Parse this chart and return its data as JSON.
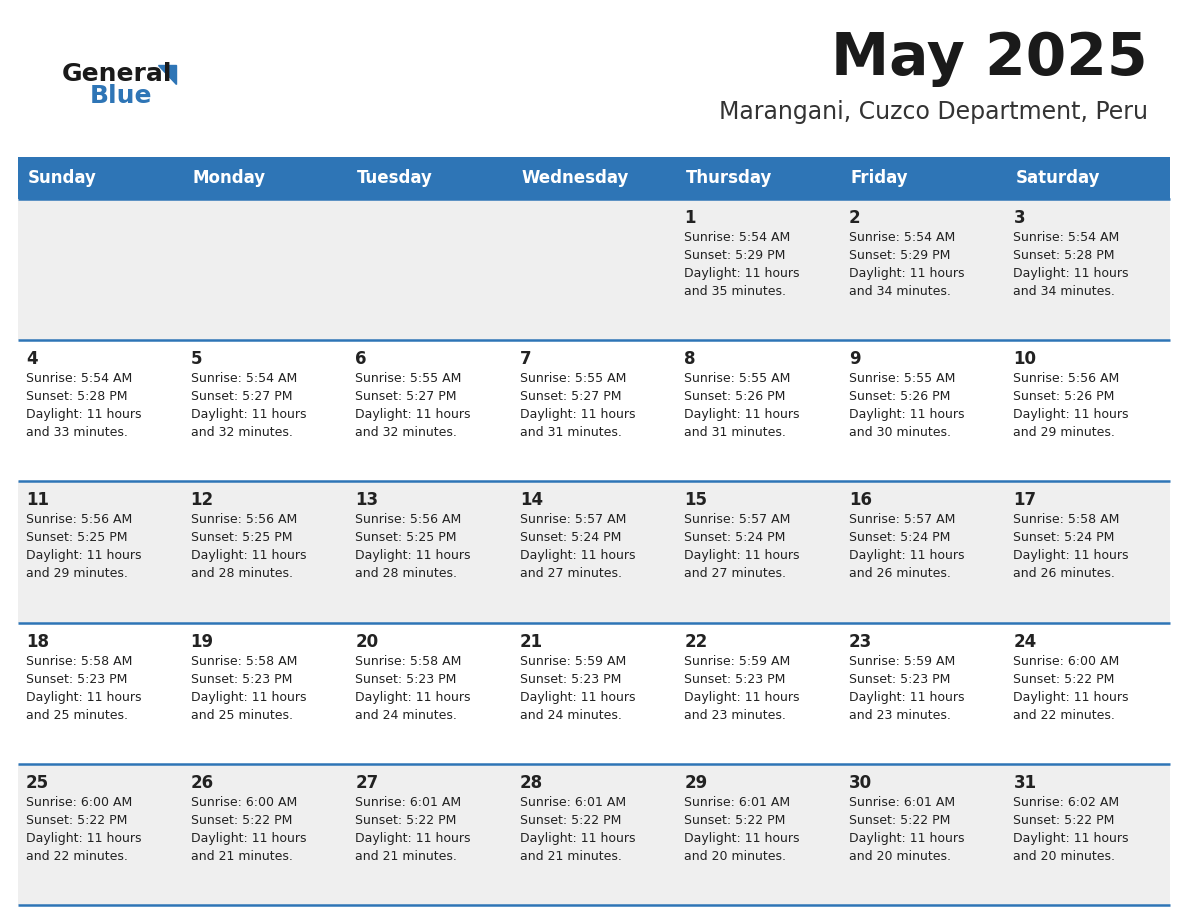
{
  "title": "May 2025",
  "subtitle": "Marangani, Cuzco Department, Peru",
  "days_of_week": [
    "Sunday",
    "Monday",
    "Tuesday",
    "Wednesday",
    "Thursday",
    "Friday",
    "Saturday"
  ],
  "header_bg": "#2E75B6",
  "header_text": "#FFFFFF",
  "row_bg_odd": "#EFEFEF",
  "row_bg_even": "#FFFFFF",
  "cell_text": "#222222",
  "separator_color": "#2E75B6",
  "title_color": "#1a1a1a",
  "subtitle_color": "#333333",
  "logo_black": "#1a1a1a",
  "logo_blue": "#2E75B6",
  "calendar": [
    [
      null,
      null,
      null,
      null,
      {
        "day": 1,
        "sunrise": "5:54 AM",
        "sunset": "5:29 PM",
        "daylight": "11 hours and 35 minutes"
      },
      {
        "day": 2,
        "sunrise": "5:54 AM",
        "sunset": "5:29 PM",
        "daylight": "11 hours and 34 minutes"
      },
      {
        "day": 3,
        "sunrise": "5:54 AM",
        "sunset": "5:28 PM",
        "daylight": "11 hours and 34 minutes"
      }
    ],
    [
      {
        "day": 4,
        "sunrise": "5:54 AM",
        "sunset": "5:28 PM",
        "daylight": "11 hours and 33 minutes"
      },
      {
        "day": 5,
        "sunrise": "5:54 AM",
        "sunset": "5:27 PM",
        "daylight": "11 hours and 32 minutes"
      },
      {
        "day": 6,
        "sunrise": "5:55 AM",
        "sunset": "5:27 PM",
        "daylight": "11 hours and 32 minutes"
      },
      {
        "day": 7,
        "sunrise": "5:55 AM",
        "sunset": "5:27 PM",
        "daylight": "11 hours and 31 minutes"
      },
      {
        "day": 8,
        "sunrise": "5:55 AM",
        "sunset": "5:26 PM",
        "daylight": "11 hours and 31 minutes"
      },
      {
        "day": 9,
        "sunrise": "5:55 AM",
        "sunset": "5:26 PM",
        "daylight": "11 hours and 30 minutes"
      },
      {
        "day": 10,
        "sunrise": "5:56 AM",
        "sunset": "5:26 PM",
        "daylight": "11 hours and 29 minutes"
      }
    ],
    [
      {
        "day": 11,
        "sunrise": "5:56 AM",
        "sunset": "5:25 PM",
        "daylight": "11 hours and 29 minutes"
      },
      {
        "day": 12,
        "sunrise": "5:56 AM",
        "sunset": "5:25 PM",
        "daylight": "11 hours and 28 minutes"
      },
      {
        "day": 13,
        "sunrise": "5:56 AM",
        "sunset": "5:25 PM",
        "daylight": "11 hours and 28 minutes"
      },
      {
        "day": 14,
        "sunrise": "5:57 AM",
        "sunset": "5:24 PM",
        "daylight": "11 hours and 27 minutes"
      },
      {
        "day": 15,
        "sunrise": "5:57 AM",
        "sunset": "5:24 PM",
        "daylight": "11 hours and 27 minutes"
      },
      {
        "day": 16,
        "sunrise": "5:57 AM",
        "sunset": "5:24 PM",
        "daylight": "11 hours and 26 minutes"
      },
      {
        "day": 17,
        "sunrise": "5:58 AM",
        "sunset": "5:24 PM",
        "daylight": "11 hours and 26 minutes"
      }
    ],
    [
      {
        "day": 18,
        "sunrise": "5:58 AM",
        "sunset": "5:23 PM",
        "daylight": "11 hours and 25 minutes"
      },
      {
        "day": 19,
        "sunrise": "5:58 AM",
        "sunset": "5:23 PM",
        "daylight": "11 hours and 25 minutes"
      },
      {
        "day": 20,
        "sunrise": "5:58 AM",
        "sunset": "5:23 PM",
        "daylight": "11 hours and 24 minutes"
      },
      {
        "day": 21,
        "sunrise": "5:59 AM",
        "sunset": "5:23 PM",
        "daylight": "11 hours and 24 minutes"
      },
      {
        "day": 22,
        "sunrise": "5:59 AM",
        "sunset": "5:23 PM",
        "daylight": "11 hours and 23 minutes"
      },
      {
        "day": 23,
        "sunrise": "5:59 AM",
        "sunset": "5:23 PM",
        "daylight": "11 hours and 23 minutes"
      },
      {
        "day": 24,
        "sunrise": "6:00 AM",
        "sunset": "5:22 PM",
        "daylight": "11 hours and 22 minutes"
      }
    ],
    [
      {
        "day": 25,
        "sunrise": "6:00 AM",
        "sunset": "5:22 PM",
        "daylight": "11 hours and 22 minutes"
      },
      {
        "day": 26,
        "sunrise": "6:00 AM",
        "sunset": "5:22 PM",
        "daylight": "11 hours and 21 minutes"
      },
      {
        "day": 27,
        "sunrise": "6:01 AM",
        "sunset": "5:22 PM",
        "daylight": "11 hours and 21 minutes"
      },
      {
        "day": 28,
        "sunrise": "6:01 AM",
        "sunset": "5:22 PM",
        "daylight": "11 hours and 21 minutes"
      },
      {
        "day": 29,
        "sunrise": "6:01 AM",
        "sunset": "5:22 PM",
        "daylight": "11 hours and 20 minutes"
      },
      {
        "day": 30,
        "sunrise": "6:01 AM",
        "sunset": "5:22 PM",
        "daylight": "11 hours and 20 minutes"
      },
      {
        "day": 31,
        "sunrise": "6:02 AM",
        "sunset": "5:22 PM",
        "daylight": "11 hours and 20 minutes"
      }
    ]
  ]
}
